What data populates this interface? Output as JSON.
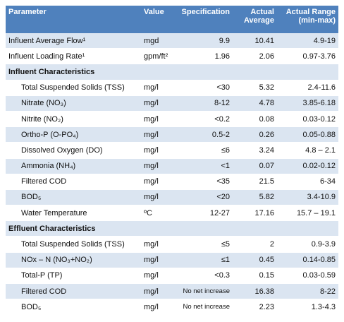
{
  "table": {
    "header": [
      "Parameter",
      "Value",
      "Specification",
      "Actual Average",
      "Actual Range (min-max)"
    ],
    "rows": [
      {
        "cells": [
          "Influent Average Flow¹",
          "mgd",
          "9.9",
          "10.41",
          "4.9-19"
        ]
      },
      {
        "cells": [
          "Influent Loading Rate¹",
          "gpm/ft²",
          "1.96",
          "2.06",
          "0.97-3.76"
        ]
      },
      {
        "section": "Influent Characteristics"
      },
      {
        "cells": [
          "Total Suspended Solids (TSS)",
          "mg/l",
          "<30",
          "5.32",
          "2.4-11.6"
        ]
      },
      {
        "cells": [
          "Nitrate (NO₃)",
          "mg/l",
          "8-12",
          "4.78",
          "3.85-6.18"
        ]
      },
      {
        "cells": [
          "Nitrite (NO₂)",
          "mg/l",
          "<0.2",
          "0.08",
          "0.03-0.12"
        ]
      },
      {
        "cells": [
          "Ortho-P (O-PO₄)",
          "mg/l",
          "0.5-2",
          "0.26",
          "0.05-0.88"
        ]
      },
      {
        "cells": [
          "Dissolved Oxygen (DO)",
          "mg/l",
          "≤6",
          "3.24",
          "4.8 – 2.1"
        ]
      },
      {
        "cells": [
          "Ammonia (NH₄)",
          "mg/l",
          "<1",
          "0.07",
          "0.02-0.12"
        ]
      },
      {
        "cells": [
          "Filtered COD",
          "mg/l",
          "<35",
          "21.5",
          "6-34"
        ]
      },
      {
        "cells": [
          "BOD₅",
          "mg/l",
          "<20",
          "5.82",
          "3.4-10.9"
        ]
      },
      {
        "cells": [
          "Water Temperature",
          "ºC",
          "12-27",
          "17.16",
          "15.7 – 19.1"
        ]
      },
      {
        "section": "Effluent Characteristics"
      },
      {
        "cells": [
          "Total Suspended Solids (TSS)",
          "mg/l",
          "≤5",
          "2",
          "0.9-3.9"
        ]
      },
      {
        "cells": [
          "NOx – N (NO₃+NO₂)",
          "mg/l",
          "≤1",
          "0.45",
          "0.14-0.85"
        ]
      },
      {
        "cells": [
          "Total-P (TP)",
          "mg/l",
          "<0.3",
          "0.15",
          "0.03-0.59"
        ]
      },
      {
        "cells": [
          "Filtered COD",
          "mg/l",
          "No net increase",
          "16.38",
          "8-22"
        ]
      },
      {
        "cells": [
          "BOD₅",
          "mg/l",
          "No net increase",
          "2.23",
          "1.3-4.3"
        ]
      }
    ]
  }
}
